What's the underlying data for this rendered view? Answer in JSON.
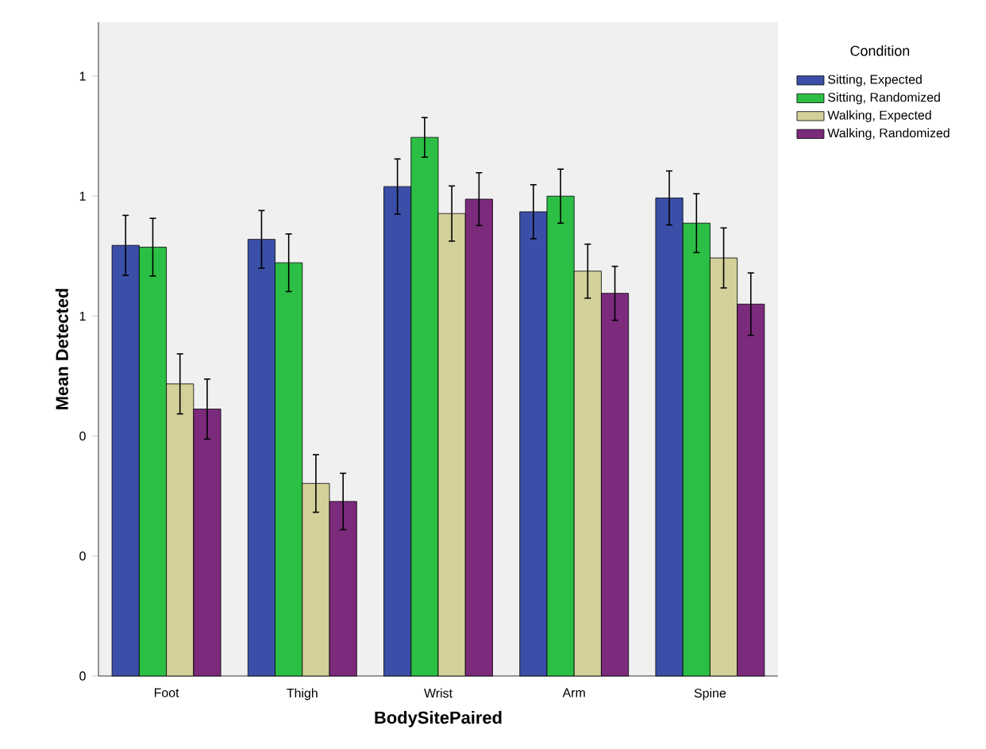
{
  "chart_data": {
    "type": "bar",
    "xlabel": "BodySitePaired",
    "ylabel": "Mean Detected",
    "legend_title": "Condition",
    "legend": "top right outside",
    "grid": false,
    "categories": [
      "Foot",
      "Thigh",
      "Wrist",
      "Arm",
      "Spine"
    ],
    "ylim": [
      0,
      1.09
    ],
    "yticks": [
      {
        "value": 0,
        "label": "0"
      },
      {
        "value": 0.2,
        "label": "0"
      },
      {
        "value": 0.4,
        "label": "0"
      },
      {
        "value": 0.6,
        "label": "1"
      },
      {
        "value": 0.8,
        "label": "1"
      },
      {
        "value": 1.0,
        "label": "1"
      }
    ],
    "series": [
      {
        "name": "Sitting, Expected",
        "color": "#3b4fa8",
        "values": [
          0.718,
          0.728,
          0.816,
          0.774,
          0.797
        ],
        "errors": [
          0.05,
          0.048,
          0.046,
          0.045,
          0.045
        ]
      },
      {
        "name": "Sitting, Randomized",
        "color": "#2cbf45",
        "values": [
          0.715,
          0.689,
          0.898,
          0.8,
          0.755
        ],
        "errors": [
          0.048,
          0.048,
          0.033,
          0.045,
          0.049
        ]
      },
      {
        "name": "Walking, Expected",
        "color": "#d4d09a",
        "values": [
          0.487,
          0.321,
          0.771,
          0.675,
          0.697
        ],
        "errors": [
          0.05,
          0.048,
          0.046,
          0.045,
          0.05
        ]
      },
      {
        "name": "Walking, Randomized",
        "color": "#7b2a7c",
        "values": [
          0.445,
          0.291,
          0.795,
          0.638,
          0.62
        ],
        "errors": [
          0.05,
          0.047,
          0.044,
          0.045,
          0.052
        ]
      }
    ]
  }
}
